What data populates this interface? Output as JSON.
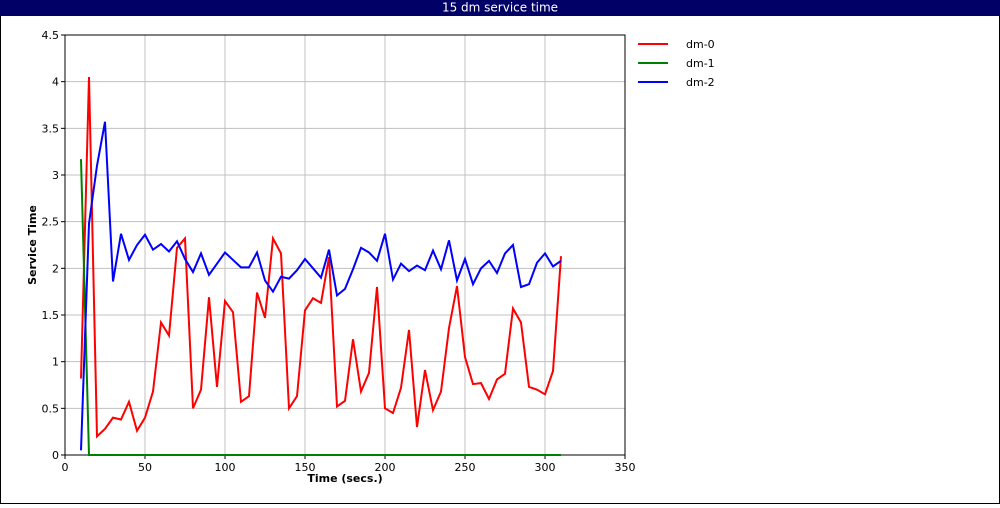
{
  "chart_data": {
    "type": "line",
    "title": "15 dm service time",
    "x_label": "Time (secs.)",
    "y_label": "Service Time",
    "x": [
      10,
      15,
      20,
      25,
      30,
      35,
      40,
      45,
      50,
      55,
      60,
      65,
      70,
      75,
      80,
      85,
      90,
      95,
      100,
      105,
      110,
      115,
      120,
      125,
      130,
      135,
      140,
      145,
      150,
      155,
      160,
      165,
      170,
      175,
      180,
      185,
      190,
      195,
      200,
      205,
      210,
      215,
      220,
      225,
      230,
      235,
      240,
      245,
      250,
      255,
      260,
      265,
      270,
      275,
      280,
      285,
      290,
      295,
      300,
      305,
      310
    ],
    "series": [
      {
        "name": "dm-0",
        "color": "#ff0000",
        "values": [
          0.82,
          4.05,
          0.2,
          0.28,
          0.4,
          0.38,
          0.57,
          0.26,
          0.4,
          0.68,
          1.42,
          1.28,
          2.22,
          2.32,
          0.5,
          0.7,
          1.69,
          0.73,
          1.65,
          1.53,
          0.57,
          0.63,
          1.74,
          1.47,
          2.32,
          2.16,
          0.5,
          0.63,
          1.55,
          1.68,
          1.63,
          2.12,
          0.52,
          0.58,
          1.24,
          0.68,
          0.88,
          1.8,
          0.5,
          0.45,
          0.72,
          1.34,
          0.3,
          0.91,
          0.48,
          0.68,
          1.36,
          1.81,
          1.05,
          0.76,
          0.77,
          0.6,
          0.81,
          0.87,
          1.57,
          1.42,
          0.73,
          0.7,
          0.65,
          0.9,
          2.13
        ]
      },
      {
        "name": "dm-1",
        "color": "#008000",
        "values": [
          3.17,
          0,
          0,
          0,
          0,
          0,
          0,
          0,
          0,
          0,
          0,
          0,
          0,
          0,
          0,
          0,
          0,
          0,
          0,
          0,
          0,
          0,
          0,
          0,
          0,
          0,
          0,
          0,
          0,
          0,
          0,
          0,
          0,
          0,
          0,
          0,
          0,
          0,
          0,
          0,
          0,
          0,
          0,
          0,
          0,
          0,
          0,
          0,
          0,
          0,
          0,
          0,
          0,
          0,
          0,
          0,
          0,
          0,
          0,
          0,
          0
        ]
      },
      {
        "name": "dm-2",
        "color": "#0000ff",
        "values": [
          0.05,
          2.48,
          3.1,
          3.57,
          1.86,
          2.37,
          2.09,
          2.25,
          2.36,
          2.2,
          2.26,
          2.18,
          2.29,
          2.1,
          1.96,
          2.16,
          1.93,
          2.05,
          2.17,
          2.09,
          2.01,
          2.01,
          2.17,
          1.87,
          1.75,
          1.91,
          1.89,
          1.98,
          2.1,
          2.0,
          1.9,
          2.2,
          1.71,
          1.78,
          1.99,
          2.22,
          2.17,
          2.08,
          2.37,
          1.88,
          2.05,
          1.97,
          2.03,
          1.98,
          2.19,
          1.99,
          2.3,
          1.87,
          2.1,
          1.83,
          2.0,
          2.08,
          1.95,
          2.16,
          2.25,
          1.8,
          1.83,
          2.06,
          2.16,
          2.02,
          2.08
        ]
      }
    ],
    "xlim": [
      0,
      350
    ],
    "xticks": [
      0,
      50,
      100,
      150,
      200,
      250,
      300,
      350
    ],
    "ylim": [
      0,
      4.5
    ],
    "yticks": [
      0,
      0.5,
      1,
      1.5,
      2,
      2.5,
      3,
      3.5,
      4,
      4.5
    ],
    "grid": true,
    "legend": "right"
  }
}
